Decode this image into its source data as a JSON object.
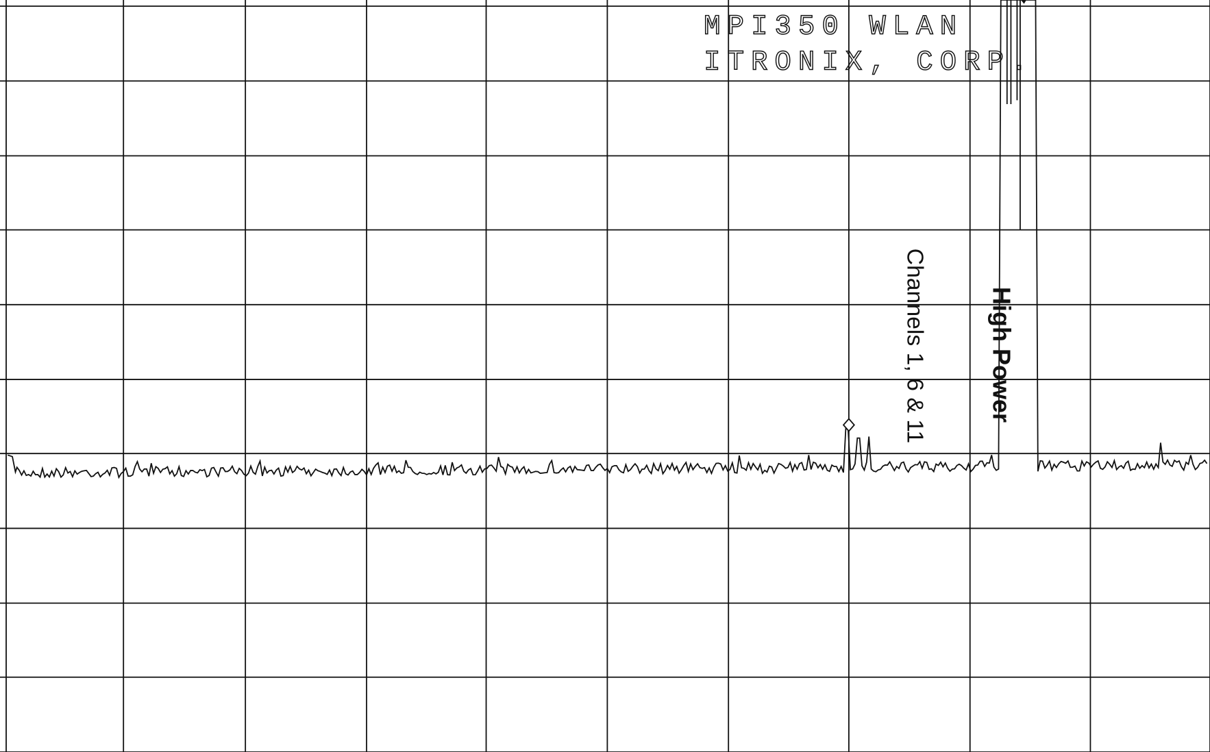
{
  "header": {
    "title_line_1": "MPI350 WLAN",
    "title_line_2": "ITRONIX, CORP."
  },
  "annotations": {
    "channels": "Channels 1, 6 & 11",
    "high_power": "High Power"
  }
}
